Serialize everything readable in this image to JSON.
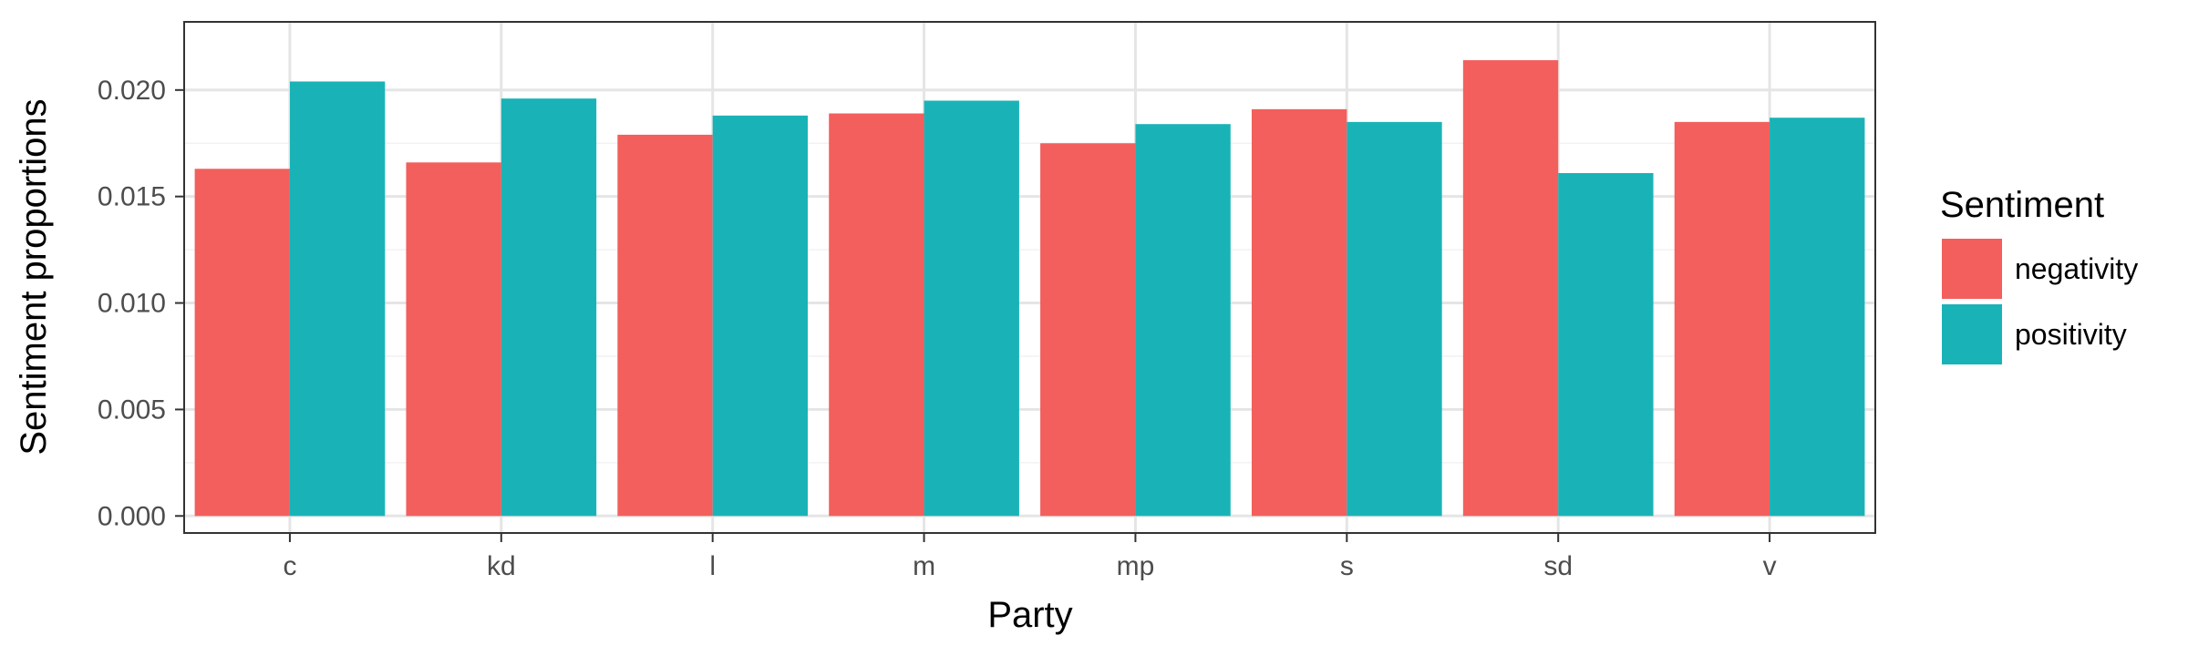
{
  "chart_data": {
    "type": "bar",
    "xlabel": "Party",
    "ylabel": "Sentiment proportions",
    "categories": [
      "c",
      "kd",
      "l",
      "m",
      "mp",
      "s",
      "sd",
      "v"
    ],
    "series": [
      {
        "name": "negativity",
        "color": "#F25F5C",
        "values": [
          0.0163,
          0.0166,
          0.0179,
          0.0189,
          0.0175,
          0.0191,
          0.0214,
          0.0185
        ]
      },
      {
        "name": "positivity",
        "color": "#19B3B7",
        "values": [
          0.0204,
          0.0196,
          0.0188,
          0.0195,
          0.0184,
          0.0185,
          0.0161,
          0.0187
        ]
      }
    ],
    "ylim": [
      -0.0008,
      0.0232
    ],
    "yticks": [
      0.0,
      0.005,
      0.01,
      0.015,
      0.02
    ],
    "ytick_labels": [
      "0.000",
      "0.005",
      "0.010",
      "0.015",
      "0.020"
    ],
    "legend": {
      "title": "Sentiment",
      "position": "right"
    },
    "grid": true,
    "colors": {
      "panel_border": "#333333",
      "grid_major": "#e5e5e5",
      "grid_minor": "#f2f2f2",
      "tick_text": "#4d4d4d"
    }
  }
}
